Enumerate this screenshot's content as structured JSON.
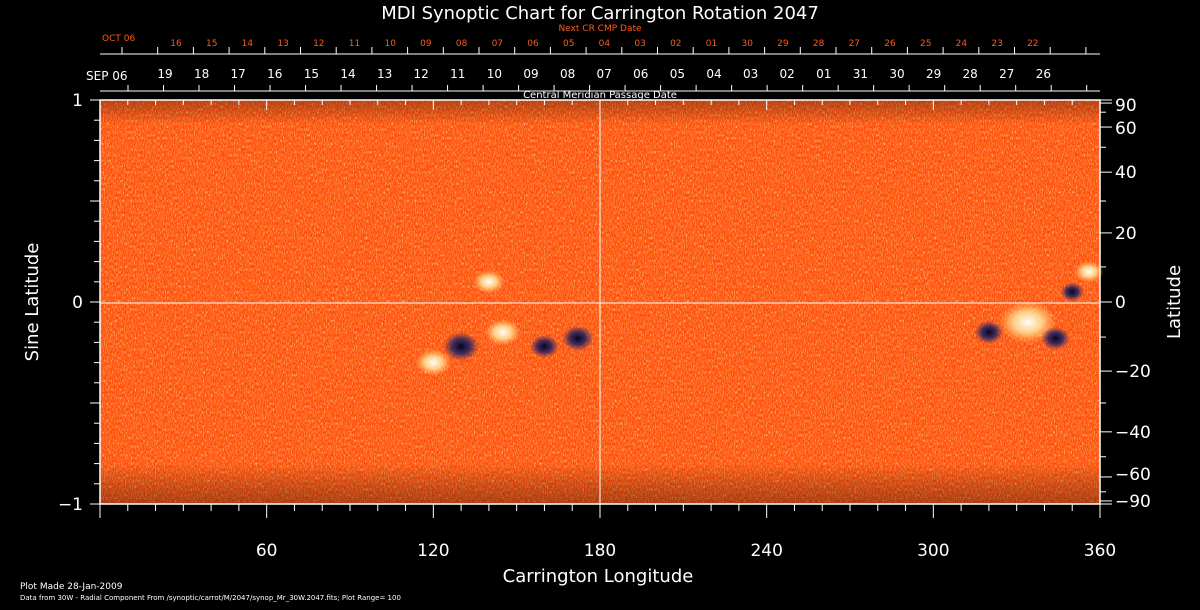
{
  "chart_data": {
    "type": "heatmap",
    "title": "MDI Synoptic Chart for Carrington Rotation 2047",
    "xlabel": "Carrington Longitude",
    "ylabel_left": "Sine Latitude",
    "ylabel_right": "Latitude",
    "xlim": [
      0,
      360
    ],
    "ylim": [
      -1,
      1
    ],
    "x_ticks": [
      60,
      120,
      180,
      240,
      300,
      360
    ],
    "y_ticks_left": [
      1,
      0,
      -1
    ],
    "y_ticks_left_labels": [
      "1",
      "0",
      "−1"
    ],
    "y_ticks_right": [
      90,
      60,
      40,
      20,
      0,
      -20,
      -40,
      -60,
      -90
    ],
    "y_ticks_right_labels": [
      "90",
      "60",
      "40",
      "20",
      "0",
      "−20",
      "−40",
      "−60",
      "−90"
    ],
    "cmp_axis_label": "Central Meridian Passage Date",
    "next_cr_label": "Next CR CMP Date",
    "cmp_start_month": "SEP 06",
    "cmp_dates": [
      "19",
      "18",
      "17",
      "16",
      "15",
      "14",
      "13",
      "12",
      "11",
      "10",
      "09",
      "08",
      "07",
      "06",
      "05",
      "04",
      "03",
      "02",
      "01",
      "31",
      "30",
      "29",
      "28",
      "27",
      "26"
    ],
    "next_cr_start_month": "OCT 06",
    "next_cr_dates": [
      "16",
      "15",
      "14",
      "13",
      "12",
      "11",
      "10",
      "09",
      "08",
      "07",
      "06",
      "05",
      "04",
      "03",
      "02",
      "01",
      "30",
      "29",
      "28",
      "27",
      "26",
      "25",
      "24",
      "23",
      "22"
    ],
    "footer_line1": "Plot Made 28-Jan-2009",
    "footer_line2": "Data from 30W - Radial Component From /synoptic/carrot/M/2047/synop_Mr_30W.2047.fits; Plot Range= 100",
    "plot_range": 100,
    "grid": "center crosshair",
    "colors": {
      "background": "#000000",
      "field": "#ff4a10",
      "positive": "#ffffff",
      "negative": "#10103a",
      "top_axis": "#ff5a1a"
    },
    "active_regions": [
      {
        "lon": 120,
        "sinlat": -0.3,
        "pos": 0.45,
        "neg": 0.0
      },
      {
        "lon": 130,
        "sinlat": -0.22,
        "pos": 0.0,
        "neg": 0.85
      },
      {
        "lon": 145,
        "sinlat": -0.15,
        "pos": 0.45,
        "neg": 0.0
      },
      {
        "lon": 160,
        "sinlat": -0.22,
        "pos": 0.0,
        "neg": 0.6
      },
      {
        "lon": 172,
        "sinlat": -0.18,
        "pos": 0.0,
        "neg": 0.7
      },
      {
        "lon": 140,
        "sinlat": 0.1,
        "pos": 0.35,
        "neg": 0.0
      },
      {
        "lon": 320,
        "sinlat": -0.15,
        "pos": 0.0,
        "neg": 0.6
      },
      {
        "lon": 334,
        "sinlat": -0.1,
        "pos": 0.95,
        "neg": 0.0
      },
      {
        "lon": 344,
        "sinlat": -0.18,
        "pos": 0.0,
        "neg": 0.6
      },
      {
        "lon": 350,
        "sinlat": 0.05,
        "pos": 0.0,
        "neg": 0.4
      },
      {
        "lon": 356,
        "sinlat": 0.15,
        "pos": 0.3,
        "neg": 0.0
      }
    ]
  }
}
